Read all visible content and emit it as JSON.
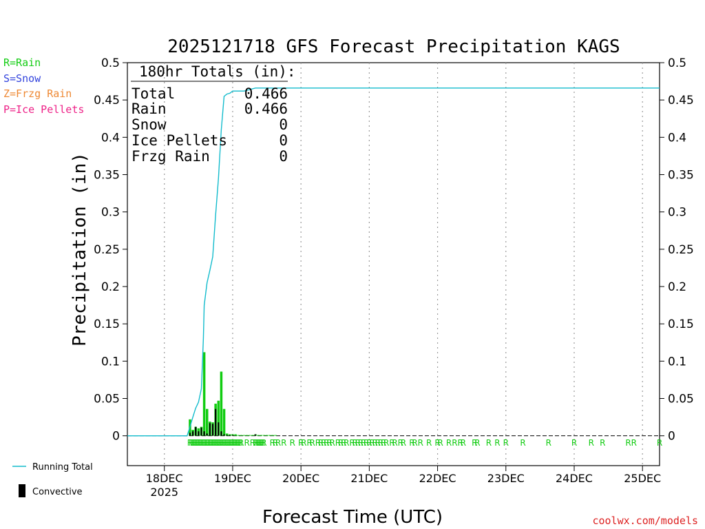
{
  "chart_data": {
    "type": "bar",
    "title": "2025121718 GFS Forecast Precipitation KAGS",
    "xlabel": "Forecast Time (UTC)",
    "ylabel": "Precipitation (in)",
    "ylim": [
      -0.04,
      0.5
    ],
    "xlim_hours": [
      -7,
      180
    ],
    "y_ticks": [
      0,
      0.05,
      0.1,
      0.15,
      0.2,
      0.25,
      0.3,
      0.35,
      0.4,
      0.45,
      0.5
    ],
    "y_tick_labels": [
      "0",
      "0.05",
      "0.1",
      "0.15",
      "0.2",
      "0.25",
      "0.3",
      "0.35",
      "0.4",
      "0.45",
      "0.5"
    ],
    "x_ticks": [
      {
        "hour": 6,
        "label": "18DEC",
        "sublabel": "2025"
      },
      {
        "hour": 30,
        "label": "19DEC",
        "sublabel": ""
      },
      {
        "hour": 54,
        "label": "20DEC",
        "sublabel": ""
      },
      {
        "hour": 78,
        "label": "21DEC",
        "sublabel": ""
      },
      {
        "hour": 102,
        "label": "22DEC",
        "sublabel": ""
      },
      {
        "hour": 126,
        "label": "23DEC",
        "sublabel": ""
      },
      {
        "hour": 150,
        "label": "24DEC",
        "sublabel": ""
      },
      {
        "hour": 174,
        "label": "25DEC",
        "sublabel": ""
      }
    ],
    "totals": {
      "heading": "180hr Totals (in):",
      "rows": [
        {
          "label": "Total",
          "value": "0.466"
        },
        {
          "label": "Rain",
          "value": "0.466"
        },
        {
          "label": "Snow",
          "value": "0"
        },
        {
          "label": "Ice Pellets",
          "value": "0"
        },
        {
          "label": "Frzg Rain",
          "value": "0"
        }
      ]
    },
    "type_legend": [
      {
        "text": "R=Rain",
        "color": "#11cc11"
      },
      {
        "text": "S=Snow",
        "color": "#3344dd"
      },
      {
        "text": "Z=Frzg Rain",
        "color": "#ee8833"
      },
      {
        "text": "P=Ice Pellets",
        "color": "#ee2288"
      }
    ],
    "series_legend": [
      {
        "name": "Running Total",
        "kind": "line",
        "color": "#11bbcc"
      },
      {
        "name": "Convective",
        "kind": "bar",
        "color": "#000000"
      }
    ],
    "series": [
      {
        "name": "Precipitation",
        "color": "#11cc11",
        "x_hours": [
          15,
          16,
          17,
          18,
          19,
          20,
          21,
          22,
          23,
          24,
          25,
          26,
          27,
          28,
          29,
          30,
          31,
          32,
          33,
          34,
          35,
          36,
          37,
          38,
          39,
          40,
          41,
          42,
          43,
          44,
          45
        ],
        "values": [
          0.022,
          0.008,
          0.012,
          0.01,
          0.012,
          0.112,
          0.036,
          0.019,
          0.018,
          0.043,
          0.047,
          0.086,
          0.036,
          0.003,
          0.002,
          0.002,
          0.002,
          0.001,
          0.001,
          0.001,
          0.001,
          0.001,
          0.001,
          0.002,
          0.001,
          0.001,
          0.001,
          0.001,
          0.001,
          0.001,
          0.001
        ]
      },
      {
        "name": "Convective",
        "color": "#000000",
        "x_hours": [
          15,
          16,
          17,
          18,
          19,
          20,
          21,
          22,
          23,
          24,
          25,
          26,
          27,
          28,
          29,
          30,
          38
        ],
        "values": [
          0.004,
          0.006,
          0.012,
          0.006,
          0.011,
          0.006,
          0.003,
          0.017,
          0.016,
          0.036,
          0.018,
          0.006,
          0.002,
          0.001,
          0.001,
          0.001,
          0.002
        ]
      },
      {
        "name": "Running Total",
        "color": "#11bbcc",
        "x_hours": [
          -7,
          14,
          15,
          16,
          17,
          18,
          19,
          19.7,
          20,
          21,
          22,
          23,
          24,
          25,
          26,
          27,
          28,
          29,
          30,
          34,
          38,
          180
        ],
        "values": [
          0,
          0,
          0.012,
          0.025,
          0.037,
          0.045,
          0.063,
          0.13,
          0.175,
          0.205,
          0.222,
          0.24,
          0.295,
          0.345,
          0.41,
          0.455,
          0.458,
          0.459,
          0.462,
          0.462,
          0.466,
          0.466
        ]
      }
    ],
    "type_markers": {
      "label": "R",
      "color": "#11cc11",
      "hours": [
        15,
        15.5,
        16,
        16.5,
        17,
        17.5,
        18,
        18.5,
        19,
        19.5,
        20,
        20.5,
        21,
        21.5,
        22,
        22.5,
        23,
        23.5,
        24,
        24.5,
        25,
        25.5,
        26,
        26.5,
        27,
        27.5,
        28,
        28.5,
        29,
        29.5,
        30,
        30.5,
        31,
        31.5,
        32,
        32.5,
        33,
        35,
        37,
        38,
        38.5,
        39,
        39.5,
        40,
        40.5,
        41,
        44,
        45,
        46,
        48,
        51,
        54,
        55,
        57,
        58,
        60,
        61,
        62,
        63,
        64,
        65,
        67,
        68,
        69,
        70,
        72,
        73,
        74,
        75,
        76,
        77,
        78,
        79,
        80,
        81,
        82,
        83,
        84,
        86,
        87,
        89,
        90,
        93,
        94,
        96,
        99,
        102,
        103,
        106,
        108,
        110,
        111,
        115,
        116,
        120,
        123,
        126,
        132,
        141,
        150,
        156,
        160,
        169,
        171,
        180
      ]
    },
    "credit": "coolwx.com/models"
  }
}
